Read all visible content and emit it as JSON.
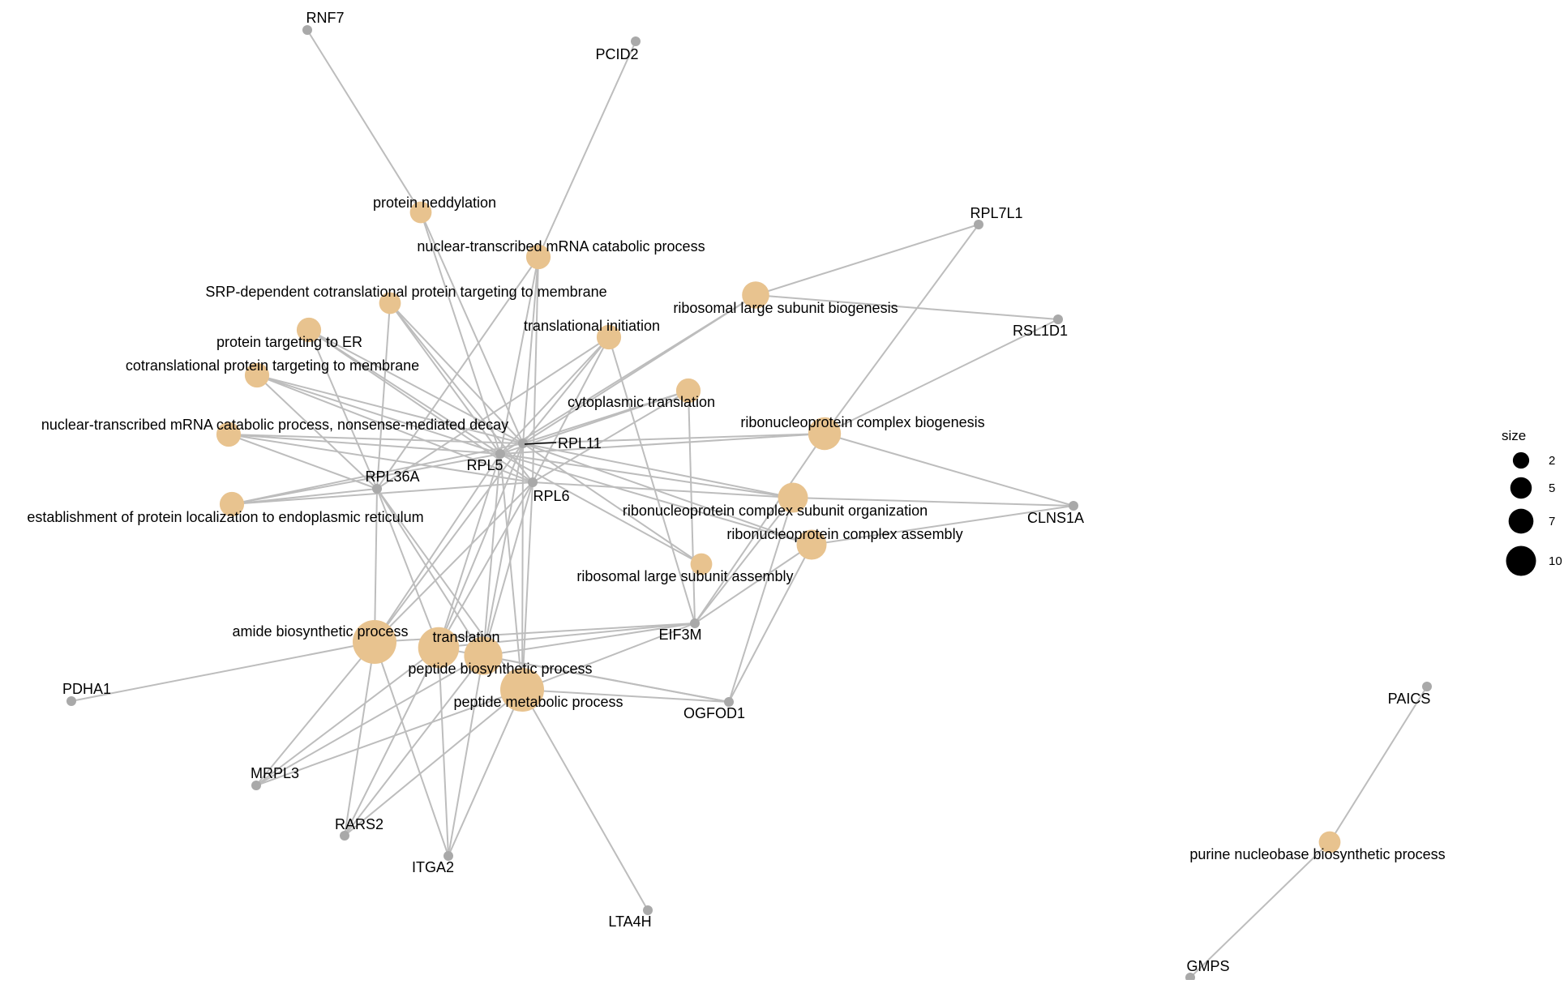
{
  "colors": {
    "edge": "#bdbdbd",
    "gene_node": "#a9a9a9",
    "term_node": "#e8c38f",
    "text": "#000000",
    "legend_dot": "#000000"
  },
  "nodes": {
    "RNF7": {
      "label": "RNF7",
      "type": "gene"
    },
    "PCID2": {
      "label": "PCID2",
      "type": "gene"
    },
    "RPL7L1": {
      "label": "RPL7L1",
      "type": "gene"
    },
    "RSL1D1": {
      "label": "RSL1D1",
      "type": "gene"
    },
    "RPL11": {
      "label": "RPL11",
      "type": "gene"
    },
    "RPL5": {
      "label": "RPL5",
      "type": "gene"
    },
    "RPL6": {
      "label": "RPL6",
      "type": "gene"
    },
    "RPL36A": {
      "label": "RPL36A",
      "type": "gene"
    },
    "CLNS1A": {
      "label": "CLNS1A",
      "type": "gene"
    },
    "EIF3M": {
      "label": "EIF3M",
      "type": "gene"
    },
    "OGFOD1": {
      "label": "OGFOD1",
      "type": "gene"
    },
    "PDHA1": {
      "label": "PDHA1",
      "type": "gene"
    },
    "MRPL3": {
      "label": "MRPL3",
      "type": "gene"
    },
    "RARS2": {
      "label": "RARS2",
      "type": "gene"
    },
    "ITGA2": {
      "label": "ITGA2",
      "type": "gene"
    },
    "LTA4H": {
      "label": "LTA4H",
      "type": "gene"
    },
    "PAICS": {
      "label": "PAICS",
      "type": "gene"
    },
    "GMPS": {
      "label": "GMPS",
      "type": "gene"
    },
    "t_neddylation": {
      "label": "protein neddylation",
      "type": "term",
      "size": 2
    },
    "t_nuclear_mrna": {
      "label": "nuclear-transcribed mRNA catabolic process",
      "type": "term",
      "size": 3
    },
    "t_srp": {
      "label": "SRP-dependent cotranslational protein targeting to membrane",
      "type": "term",
      "size": 2
    },
    "t_er": {
      "label": "protein targeting to ER",
      "type": "term",
      "size": 3
    },
    "t_cotrans": {
      "label": "cotranslational protein targeting to membrane",
      "type": "term",
      "size": 3
    },
    "t_nmd": {
      "label": "nuclear-transcribed mRNA catabolic process, nonsense-mediated decay",
      "type": "term",
      "size": 3
    },
    "t_establish": {
      "label": "establishment of protein localization to endoplasmic reticulum",
      "type": "term",
      "size": 3
    },
    "t_init": {
      "label": "translational initiation",
      "type": "term",
      "size": 3
    },
    "t_cyto": {
      "label": "cytoplasmic translation",
      "type": "term",
      "size": 3
    },
    "t_lsb": {
      "label": "ribosomal large subunit biogenesis",
      "type": "term",
      "size": 4
    },
    "t_rcb": {
      "label": "ribonucleoprotein complex biogenesis",
      "type": "term",
      "size": 6
    },
    "t_rcso": {
      "label": "ribonucleoprotein complex subunit organization",
      "type": "term",
      "size": 5
    },
    "t_rca": {
      "label": "ribonucleoprotein complex assembly",
      "type": "term",
      "size": 5
    },
    "t_lsa": {
      "label": "ribosomal large subunit assembly",
      "type": "term",
      "size": 2
    },
    "t_amide": {
      "label": "amide biosynthetic process",
      "type": "term",
      "size": 10
    },
    "t_translation": {
      "label": "translation",
      "type": "term",
      "size": 9
    },
    "t_pbp": {
      "label": "peptide biosynthetic process",
      "type": "term",
      "size": 8
    },
    "t_pmp": {
      "label": "peptide metabolic process",
      "type": "term",
      "size": 10
    },
    "t_purine": {
      "label": "purine nucleobase biosynthetic process",
      "type": "term",
      "size": 2
    }
  },
  "edges": [
    [
      "RNF7",
      "t_neddylation"
    ],
    [
      "t_neddylation",
      "RPL5"
    ],
    [
      "t_neddylation",
      "RPL11"
    ],
    [
      "PCID2",
      "t_nuclear_mrna"
    ],
    [
      "t_nuclear_mrna",
      "RPL5"
    ],
    [
      "t_nuclear_mrna",
      "RPL11"
    ],
    [
      "t_nuclear_mrna",
      "RPL6"
    ],
    [
      "t_nuclear_mrna",
      "RPL36A"
    ],
    [
      "t_srp",
      "RPL5"
    ],
    [
      "t_srp",
      "RPL11"
    ],
    [
      "t_srp",
      "RPL6"
    ],
    [
      "t_srp",
      "RPL36A"
    ],
    [
      "t_er",
      "RPL5"
    ],
    [
      "t_er",
      "RPL11"
    ],
    [
      "t_er",
      "RPL6"
    ],
    [
      "t_er",
      "RPL36A"
    ],
    [
      "t_cotrans",
      "RPL5"
    ],
    [
      "t_cotrans",
      "RPL11"
    ],
    [
      "t_cotrans",
      "RPL6"
    ],
    [
      "t_cotrans",
      "RPL36A"
    ],
    [
      "t_nmd",
      "RPL5"
    ],
    [
      "t_nmd",
      "RPL11"
    ],
    [
      "t_nmd",
      "RPL6"
    ],
    [
      "t_nmd",
      "RPL36A"
    ],
    [
      "t_establish",
      "RPL5"
    ],
    [
      "t_establish",
      "RPL11"
    ],
    [
      "t_establish",
      "RPL6"
    ],
    [
      "t_establish",
      "RPL36A"
    ],
    [
      "t_init",
      "RPL5"
    ],
    [
      "t_init",
      "RPL11"
    ],
    [
      "t_init",
      "RPL6"
    ],
    [
      "t_init",
      "RPL36A"
    ],
    [
      "t_init",
      "EIF3M"
    ],
    [
      "t_cyto",
      "RPL5"
    ],
    [
      "t_cyto",
      "RPL11"
    ],
    [
      "t_cyto",
      "RPL6"
    ],
    [
      "t_cyto",
      "EIF3M"
    ],
    [
      "t_lsb",
      "RPL7L1"
    ],
    [
      "t_lsb",
      "RSL1D1"
    ],
    [
      "t_lsb",
      "RPL5"
    ],
    [
      "t_lsb",
      "RPL11"
    ],
    [
      "t_rcb",
      "RPL7L1"
    ],
    [
      "t_rcb",
      "RSL1D1"
    ],
    [
      "t_rcb",
      "CLNS1A"
    ],
    [
      "t_rcb",
      "RPL5"
    ],
    [
      "t_rcb",
      "RPL11"
    ],
    [
      "t_rcb",
      "EIF3M"
    ],
    [
      "t_rcso",
      "CLNS1A"
    ],
    [
      "t_rcso",
      "RPL5"
    ],
    [
      "t_rcso",
      "RPL11"
    ],
    [
      "t_rcso",
      "RPL6"
    ],
    [
      "t_rcso",
      "EIF3M"
    ],
    [
      "t_rcso",
      "OGFOD1"
    ],
    [
      "t_rca",
      "CLNS1A"
    ],
    [
      "t_rca",
      "RPL5"
    ],
    [
      "t_rca",
      "RPL11"
    ],
    [
      "t_rca",
      "EIF3M"
    ],
    [
      "t_rca",
      "OGFOD1"
    ],
    [
      "t_lsa",
      "RPL5"
    ],
    [
      "t_lsa",
      "RPL11"
    ],
    [
      "t_amide",
      "RPL5"
    ],
    [
      "t_amide",
      "RPL11"
    ],
    [
      "t_amide",
      "RPL6"
    ],
    [
      "t_amide",
      "RPL36A"
    ],
    [
      "t_amide",
      "EIF3M"
    ],
    [
      "t_amide",
      "PDHA1"
    ],
    [
      "t_amide",
      "MRPL3"
    ],
    [
      "t_amide",
      "RARS2"
    ],
    [
      "t_amide",
      "ITGA2"
    ],
    [
      "t_translation",
      "RPL5"
    ],
    [
      "t_translation",
      "RPL11"
    ],
    [
      "t_translation",
      "RPL6"
    ],
    [
      "t_translation",
      "RPL36A"
    ],
    [
      "t_translation",
      "EIF3M"
    ],
    [
      "t_translation",
      "MRPL3"
    ],
    [
      "t_translation",
      "RARS2"
    ],
    [
      "t_translation",
      "ITGA2"
    ],
    [
      "t_translation",
      "OGFOD1"
    ],
    [
      "t_pbp",
      "RPL5"
    ],
    [
      "t_pbp",
      "RPL11"
    ],
    [
      "t_pbp",
      "RPL6"
    ],
    [
      "t_pbp",
      "RPL36A"
    ],
    [
      "t_pbp",
      "EIF3M"
    ],
    [
      "t_pbp",
      "MRPL3"
    ],
    [
      "t_pbp",
      "RARS2"
    ],
    [
      "t_pbp",
      "ITGA2"
    ],
    [
      "t_pbp",
      "OGFOD1"
    ],
    [
      "t_pmp",
      "RPL5"
    ],
    [
      "t_pmp",
      "RPL11"
    ],
    [
      "t_pmp",
      "RPL6"
    ],
    [
      "t_pmp",
      "RPL36A"
    ],
    [
      "t_pmp",
      "EIF3M"
    ],
    [
      "t_pmp",
      "MRPL3"
    ],
    [
      "t_pmp",
      "RARS2"
    ],
    [
      "t_pmp",
      "ITGA2"
    ],
    [
      "t_pmp",
      "OGFOD1"
    ],
    [
      "t_pmp",
      "LTA4H"
    ],
    [
      "t_purine",
      "PAICS"
    ],
    [
      "t_purine",
      "GMPS"
    ]
  ],
  "legend": {
    "title": "size",
    "items": [
      {
        "label": "2",
        "size": 2
      },
      {
        "label": "5",
        "size": 5
      },
      {
        "label": "7",
        "size": 7
      },
      {
        "label": "10",
        "size": 10
      }
    ]
  }
}
